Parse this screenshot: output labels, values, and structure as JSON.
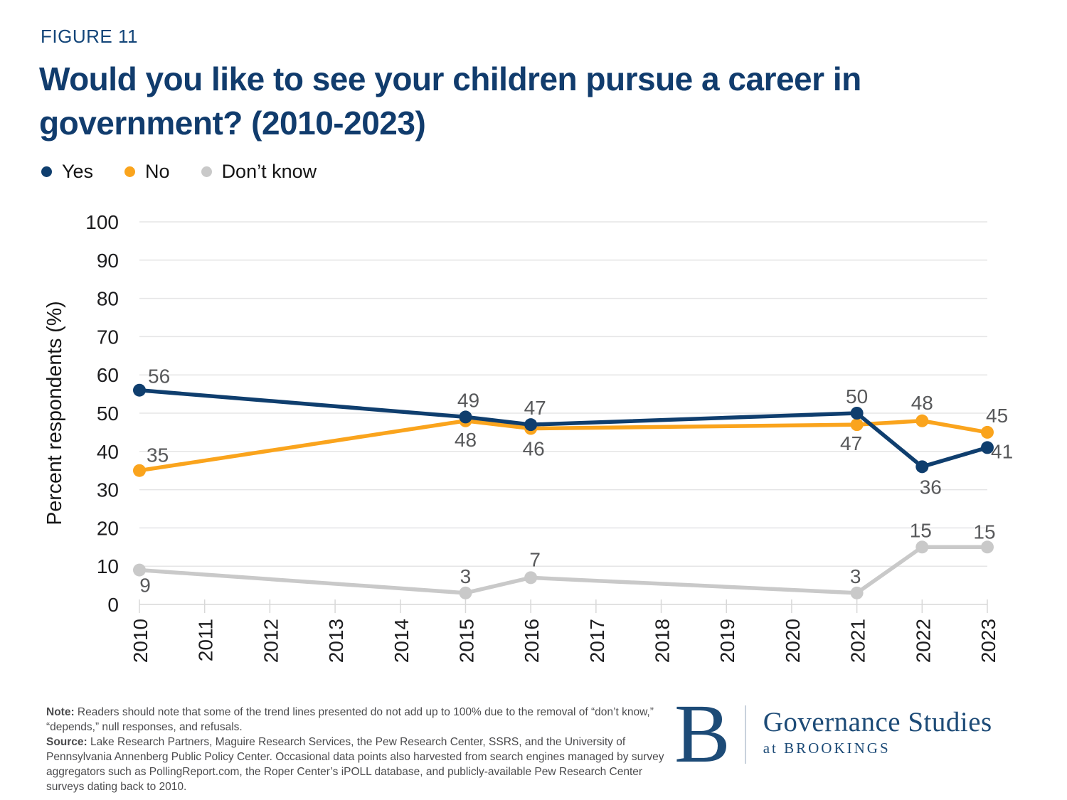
{
  "figure_label": "FIGURE 11",
  "title_line1": "Would you like to see your children pursue a career in",
  "title_line2": "government? (2010-2023)",
  "colors": {
    "yes": "#0f3e6e",
    "no": "#faa41d",
    "dont_know": "#c9c9c9",
    "title_navy": "#113c6d",
    "data_label_gray": "#58595b",
    "axis_text": "#1d1d1f",
    "gridline": "#e5e5e6",
    "tick": "#d8d8d8",
    "logo_navy": "#1d4b77"
  },
  "chart_data": {
    "type": "line",
    "title": "Would you like to see your children pursue a career in government? (2010-2023)",
    "xlabel": "",
    "ylabel": "Percent respondents (%)",
    "ylim": [
      0,
      100
    ],
    "ytick_step": 10,
    "grid": true,
    "legend_position": "top-left",
    "x_categories": [
      "2010",
      "2011",
      "2012",
      "2013",
      "2014",
      "2015",
      "2016",
      "2017",
      "2018",
      "2019",
      "2020",
      "2021",
      "2022",
      "2023"
    ],
    "series": [
      {
        "name": "Yes",
        "color": "#0f3e6e",
        "points": [
          [
            "2010",
            56
          ],
          [
            "2015",
            49
          ],
          [
            "2016",
            47
          ],
          [
            "2021",
            50
          ],
          [
            "2022",
            36
          ],
          [
            "2023",
            41
          ]
        ]
      },
      {
        "name": "No",
        "color": "#faa41d",
        "points": [
          [
            "2010",
            35
          ],
          [
            "2015",
            48
          ],
          [
            "2016",
            46
          ],
          [
            "2021",
            47
          ],
          [
            "2022",
            48
          ],
          [
            "2023",
            45
          ]
        ]
      },
      {
        "name": "Don’t know",
        "color": "#c9c9c9",
        "points": [
          [
            "2010",
            9
          ],
          [
            "2015",
            3
          ],
          [
            "2016",
            7
          ],
          [
            "2021",
            3
          ],
          [
            "2022",
            15
          ],
          [
            "2023",
            15
          ]
        ]
      }
    ]
  },
  "footer": {
    "note_label": "Note:",
    "note_text": "Readers should note that some of the trend lines presented do not add up to 100% due to the removal of “don’t know,” “depends,” null responses, and refusals.",
    "source_label": "Source:",
    "source_text": "Lake Research Partners, Maguire Research Services, the Pew Research Center, SSRS, and the University of Pennsylvania Annenberg Public Policy Center. Occasional data points also harvested from search engines managed by survey aggregators such as PollingReport.com, the Roper Center’s iPOLL database, and publicly-available Pew Research Center surveys dating back to 2010.",
    "logo": {
      "b_mark": "B",
      "name": "Governance Studies",
      "tagline": "at BROOKINGS"
    }
  }
}
